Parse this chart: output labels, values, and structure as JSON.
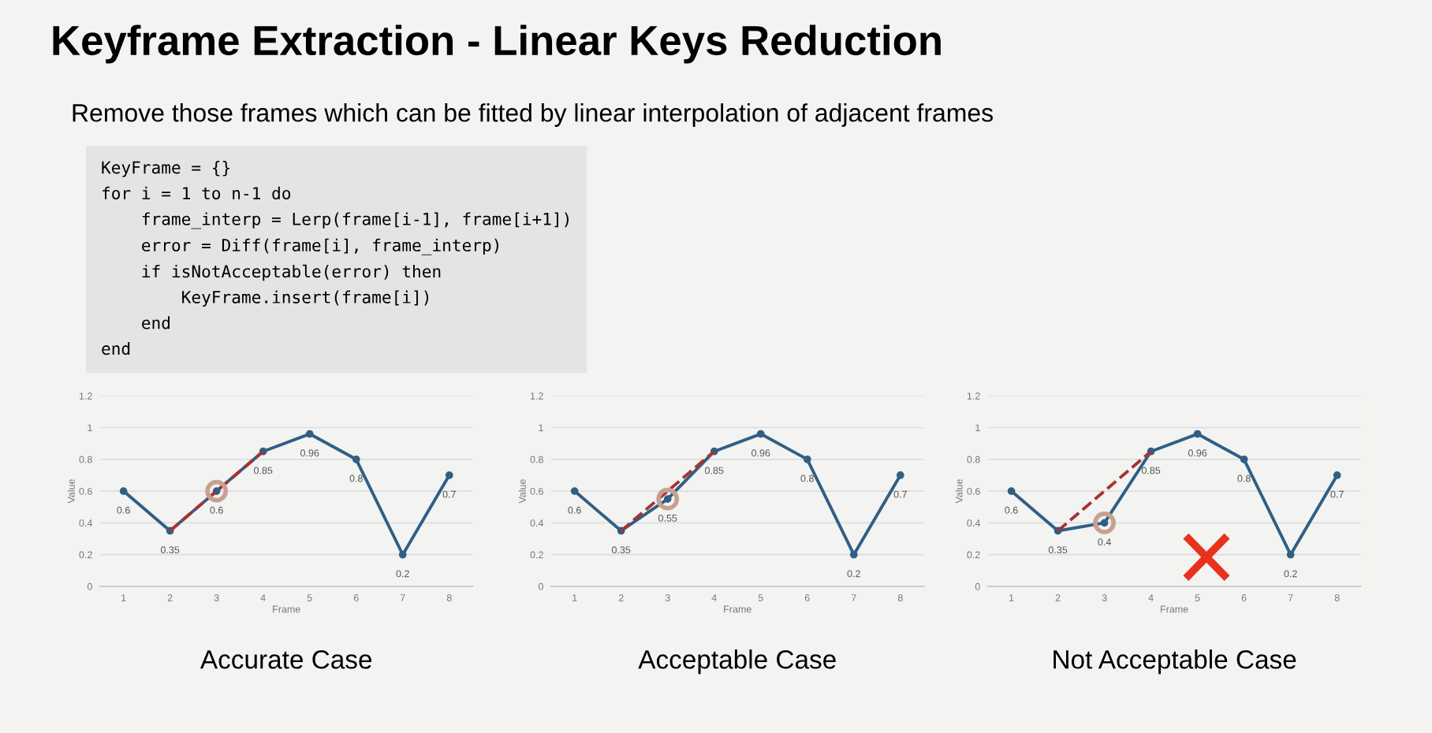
{
  "chart_data": [
    {
      "type": "other",
      "title": "Keyframe Extraction - Linear Keys Reduction",
      "subtitle": "Remove those frames which can be fitted by linear interpolation of adjacent frames",
      "annotations": [
        "KeyFrame = {}\nfor i = 1 to n-1 do\n    frame_interp = Lerp(frame[i-1], frame[i+1])\n    error = Diff(frame[i], frame_interp)\n    if isNotAcceptable(error) then\n        KeyFrame.insert(frame[i])\n    end\nend"
      ]
    },
    {
      "type": "line",
      "title": "Accurate Case",
      "xlabel": "Frame",
      "ylabel": "Value",
      "categories": [
        "1",
        "2",
        "3",
        "4",
        "5",
        "6",
        "7",
        "8"
      ],
      "ylim": [
        0,
        1.2
      ],
      "yticks": [
        0,
        0.2,
        0.4,
        0.6,
        0.8,
        1,
        1.2
      ],
      "grid": "y",
      "marker": "circle",
      "series": [
        {
          "color": "#2f5f86",
          "values": [
            0.6,
            0.35,
            0.6,
            0.85,
            0.96,
            0.8,
            0.2,
            0.7
          ],
          "value_labels": [
            "0.6",
            "0.35",
            "0.6",
            "0.85",
            "0.96",
            "0.8",
            "0.2",
            "0.7"
          ]
        },
        {
          "type": "line",
          "line_style": "dashed",
          "marker": "none",
          "color": "#a83232",
          "x": [
            "2",
            "4"
          ],
          "values": [
            0.35,
            0.85
          ]
        },
        {
          "type": "scatter",
          "color": "#c8a090",
          "x": [
            "3"
          ],
          "values": [
            0.6
          ]
        }
      ]
    },
    {
      "type": "line",
      "title": "Acceptable Case",
      "xlabel": "Frame",
      "ylabel": "Value",
      "categories": [
        "1",
        "2",
        "3",
        "4",
        "5",
        "6",
        "7",
        "8"
      ],
      "ylim": [
        0,
        1.2
      ],
      "yticks": [
        0,
        0.2,
        0.4,
        0.6,
        0.8,
        1,
        1.2
      ],
      "grid": "y",
      "marker": "circle",
      "series": [
        {
          "color": "#2f5f86",
          "values": [
            0.6,
            0.35,
            0.55,
            0.85,
            0.96,
            0.8,
            0.2,
            0.7
          ],
          "value_labels": [
            "0.6",
            "0.35",
            "0.55",
            "0.85",
            "0.96",
            "0.8",
            "0.2",
            "0.7"
          ]
        },
        {
          "type": "line",
          "line_style": "dashed",
          "marker": "none",
          "color": "#a83232",
          "x": [
            "2",
            "4"
          ],
          "values": [
            0.35,
            0.85
          ]
        },
        {
          "type": "scatter",
          "color": "#c8a090",
          "x": [
            "3"
          ],
          "values": [
            0.55
          ]
        }
      ]
    },
    {
      "type": "line",
      "title": "Not Acceptable Case",
      "xlabel": "Frame",
      "ylabel": "Value",
      "categories": [
        "1",
        "2",
        "3",
        "4",
        "5",
        "6",
        "7",
        "8"
      ],
      "ylim": [
        0,
        1.2
      ],
      "yticks": [
        0,
        0.2,
        0.4,
        0.6,
        0.8,
        1,
        1.2
      ],
      "grid": "y",
      "marker": "circle",
      "series": [
        {
          "color": "#2f5f86",
          "values": [
            0.6,
            0.35,
            0.4,
            0.85,
            0.96,
            0.8,
            0.2,
            0.7
          ],
          "value_labels": [
            "0.6",
            "0.35",
            "0.4",
            "0.85",
            "0.96",
            "0.8",
            "0.2",
            "0.7"
          ]
        },
        {
          "type": "line",
          "line_style": "dashed",
          "marker": "none",
          "color": "#a83232",
          "x": [
            "2",
            "4"
          ],
          "values": [
            0.35,
            0.85
          ]
        },
        {
          "type": "scatter",
          "color": "#c8a090",
          "x": [
            "3"
          ],
          "values": [
            0.4
          ]
        }
      ]
    }
  ]
}
